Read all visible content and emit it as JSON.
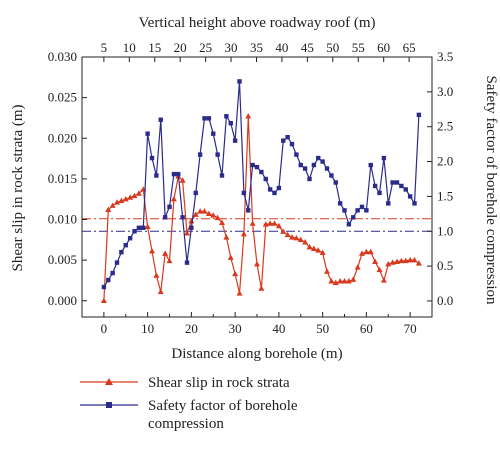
{
  "chart_data": {
    "type": "line",
    "x_label": "Distance along borehole (m)",
    "top_x_label": "Vertical height above roadway roof (m)",
    "y_left_label": "Shear slip in rock strata (m)",
    "y_right_label": "Safety factor of borehole compression",
    "x_range": [
      -5,
      75
    ],
    "x_ticks": [
      0,
      10,
      20,
      30,
      40,
      50,
      60,
      70
    ],
    "top_x_ticks": [
      5,
      10,
      15,
      20,
      25,
      30,
      35,
      40,
      45,
      50,
      55,
      60,
      65
    ],
    "y_left_range": [
      -0.002,
      0.03
    ],
    "y_left_ticks": [
      "0.000",
      "0.005",
      "0.010",
      "0.015",
      "0.020",
      "0.025",
      "0.030"
    ],
    "y_right_range": [
      -0.23,
      3.5
    ],
    "y_right_ticks": [
      "0.0",
      "0.5",
      "1.0",
      "1.5",
      "2.0",
      "2.5",
      "3.0",
      "3.5"
    ],
    "reference_lines": [
      {
        "axis": "left",
        "value": 0.0101,
        "color": "#d93a1e",
        "style": "dash-dot"
      },
      {
        "axis": "right",
        "value": 1.0,
        "color": "#2b2b8c",
        "style": "dash-dot"
      }
    ],
    "series": [
      {
        "name": "Shear slip in rock strata",
        "axis": "left",
        "color": "#d93a1e",
        "marker": "triangle",
        "x": [
          0,
          1,
          2,
          3,
          4,
          5,
          6,
          7,
          8,
          9,
          10,
          11,
          12,
          13,
          14,
          15,
          16,
          17,
          18,
          19,
          20,
          21,
          22,
          23,
          24,
          25,
          26,
          27,
          28,
          29,
          30,
          31,
          32,
          33,
          34,
          35,
          36,
          37,
          38,
          39,
          40,
          41,
          42,
          43,
          44,
          45,
          46,
          47,
          48,
          49,
          50,
          51,
          52,
          53,
          54,
          55,
          56,
          57,
          58,
          59,
          60,
          61,
          62,
          63,
          64,
          65,
          66,
          67,
          68,
          69,
          70,
          71,
          72
        ],
        "y": [
          0.0,
          0.0112,
          0.0117,
          0.0121,
          0.0123,
          0.0125,
          0.0127,
          0.0129,
          0.0132,
          0.0137,
          0.0091,
          0.0061,
          0.0031,
          0.0011,
          0.0058,
          0.0049,
          0.0125,
          0.0153,
          0.0148,
          0.0083,
          0.0098,
          0.0106,
          0.011,
          0.011,
          0.0107,
          0.0105,
          0.0102,
          0.0096,
          0.0078,
          0.0053,
          0.0033,
          0.0009,
          0.0082,
          0.0227,
          0.0095,
          0.0045,
          0.0015,
          0.0094,
          0.0095,
          0.0095,
          0.0092,
          0.0085,
          0.0081,
          0.0078,
          0.0077,
          0.0075,
          0.0072,
          0.0066,
          0.0064,
          0.0062,
          0.0059,
          0.0036,
          0.0024,
          0.0022,
          0.0024,
          0.0024,
          0.0024,
          0.0026,
          0.0041,
          0.0058,
          0.006,
          0.006,
          0.0048,
          0.0038,
          0.0025,
          0.0045,
          0.0047,
          0.0048,
          0.0049,
          0.0049,
          0.005,
          0.005,
          0.0046
        ]
      },
      {
        "name": "Safety factor of borehole compression",
        "axis": "right",
        "color": "#2b2b8c",
        "marker": "square",
        "x": [
          0,
          1,
          2,
          3,
          4,
          5,
          6,
          7,
          8,
          9,
          10,
          11,
          12,
          13,
          14,
          15,
          16,
          17,
          18,
          19,
          20,
          21,
          22,
          23,
          24,
          25,
          26,
          27,
          28,
          29,
          30,
          31,
          32,
          33,
          34,
          35,
          36,
          37,
          38,
          39,
          40,
          41,
          42,
          43,
          44,
          45,
          46,
          47,
          48,
          49,
          50,
          51,
          52,
          53,
          54,
          55,
          56,
          57,
          58,
          59,
          60,
          61,
          62,
          63,
          64,
          65,
          66,
          67,
          68,
          69,
          70,
          71,
          72
        ],
        "y": [
          0.2,
          0.3,
          0.4,
          0.55,
          0.7,
          0.8,
          0.9,
          1.0,
          1.05,
          1.05,
          2.4,
          2.05,
          1.8,
          2.6,
          1.2,
          1.35,
          1.82,
          1.82,
          1.2,
          0.55,
          1.05,
          1.55,
          2.1,
          2.62,
          2.62,
          2.4,
          2.1,
          1.8,
          2.65,
          2.55,
          2.3,
          3.15,
          1.55,
          1.3,
          1.95,
          1.92,
          1.85,
          1.75,
          1.6,
          1.55,
          1.62,
          2.3,
          2.35,
          2.25,
          2.1,
          1.95,
          1.9,
          1.75,
          1.95,
          2.05,
          2.0,
          1.9,
          1.8,
          1.7,
          1.4,
          1.3,
          1.1,
          1.2,
          1.3,
          1.35,
          1.3,
          1.95,
          1.65,
          1.55,
          2.05,
          1.4,
          1.7,
          1.7,
          1.65,
          1.6,
          1.5,
          1.4,
          2.67
        ]
      }
    ]
  }
}
